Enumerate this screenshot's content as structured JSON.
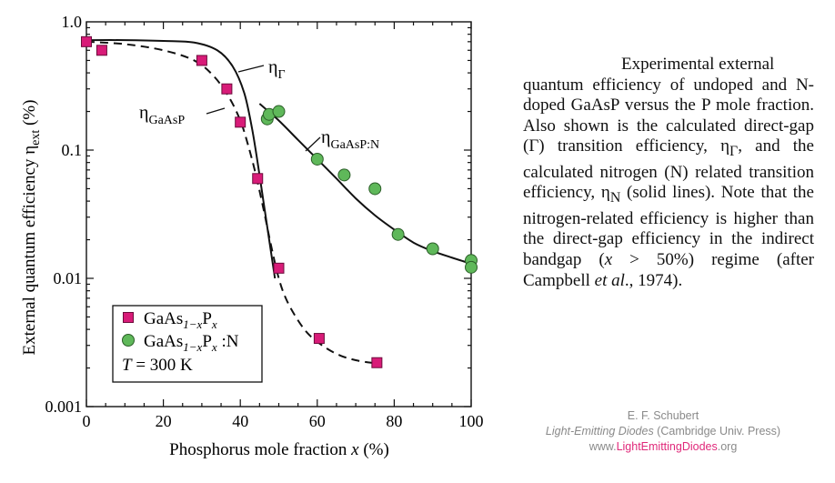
{
  "chart_data": {
    "type": "scatter",
    "xlabel": "Phosphorus mole fraction",
    "xlabel_var": "x",
    "xlabel_unit": "(%)",
    "ylabel": "External quantum efficiency",
    "ylabel_sym": "η",
    "ylabel_sub": "ext",
    "ylabel_unit": "(%)",
    "xlim": [
      0,
      100
    ],
    "ylim": [
      0.001,
      1.0
    ],
    "yscale": "log",
    "x_ticks": [
      "0",
      "20",
      "40",
      "60",
      "80",
      "100"
    ],
    "y_ticks": [
      "0.001",
      "0.01",
      "0.1",
      "1.0"
    ],
    "legend": {
      "placement": "bottom-left",
      "entries": [
        {
          "prefix": "GaAs",
          "sub": "1−x",
          "mid": "P",
          "sub2": "x",
          "suffix": "",
          "marker": "square",
          "color": "#d81b78"
        },
        {
          "prefix": "GaAs",
          "sub": "1−x",
          "mid": "P",
          "sub2": "x",
          "suffix": " :N",
          "marker": "circle",
          "color": "#5fb85a"
        }
      ],
      "temperature": {
        "symbol": "T",
        "value": "=  300 K"
      }
    },
    "series": [
      {
        "name": "GaAs1−xPx",
        "marker": "square",
        "color": "#d81b78",
        "x": [
          0,
          4,
          30,
          36.5,
          40,
          44.5,
          50,
          60.5,
          75.5
        ],
        "y": [
          0.7,
          0.6,
          0.5,
          0.3,
          0.165,
          0.06,
          0.012,
          0.0034,
          0.0022
        ]
      },
      {
        "name": "GaAs1−xPx :N",
        "marker": "circle",
        "color": "#5fb85a",
        "x": [
          47,
          47.5,
          50,
          60,
          67,
          75,
          81,
          90,
          100,
          100
        ],
        "y": [
          0.175,
          0.19,
          0.2,
          0.085,
          0.064,
          0.05,
          0.022,
          0.017,
          0.0138,
          0.0122
        ]
      }
    ],
    "curves": [
      {
        "label_sym": "η",
        "label_sub": "Γ",
        "style": "solid",
        "x": [
          0,
          10,
          20,
          28,
          34,
          38,
          41,
          43,
          44.5,
          46,
          47.5,
          49
        ],
        "y": [
          0.72,
          0.72,
          0.71,
          0.69,
          0.6,
          0.45,
          0.28,
          0.15,
          0.08,
          0.04,
          0.02,
          0.01
        ]
      },
      {
        "label_sym": "η",
        "label_sub": "GaAsP",
        "style": "dashed",
        "x": [
          0,
          10,
          20,
          28,
          33,
          37,
          40,
          42,
          44,
          46,
          48,
          50,
          52,
          55,
          58,
          62,
          66,
          70,
          74,
          76
        ],
        "y": [
          0.7,
          0.67,
          0.6,
          0.5,
          0.38,
          0.26,
          0.17,
          0.11,
          0.065,
          0.035,
          0.018,
          0.01,
          0.0068,
          0.0047,
          0.0036,
          0.0029,
          0.0025,
          0.0023,
          0.0022,
          0.0022
        ]
      },
      {
        "label_sym": "η",
        "label_sub": "GaAsP:N",
        "style": "solid",
        "x": [
          45,
          50,
          55,
          60,
          65,
          70,
          75,
          80,
          85,
          90,
          95,
          100
        ],
        "y": [
          0.23,
          0.17,
          0.12,
          0.085,
          0.06,
          0.042,
          0.031,
          0.024,
          0.019,
          0.0163,
          0.0145,
          0.013
        ]
      }
    ]
  },
  "caption": {
    "line1": "Experimental external",
    "rest": "quantum efficiency of undoped and N-doped GaAsP versus the P mole fraction. Also shown is the calculated direct-gap (Γ) transition efficiency, η",
    "sub_gamma": "Γ",
    "mid": ", and the calculated nitrogen (N) related transition efficiency, η",
    "sub_n": "N",
    "tail1": " (solid lines). Note that the nitrogen-related efficiency is higher than the direct-gap efficiency in the indirect bandgap (",
    "x_var": "x",
    "tail2": " > 50%) regime (after Campbell ",
    "et_al": "et al",
    "tail3": "., 1974)."
  },
  "credit": {
    "author": "E. F. Schubert",
    "book": "Light-Emitting Diodes",
    "publisher": " (Cambridge Univ. Press)",
    "url_pre": "www.",
    "url_hl": "LightEmittingDiodes",
    "url_post": ".org"
  }
}
